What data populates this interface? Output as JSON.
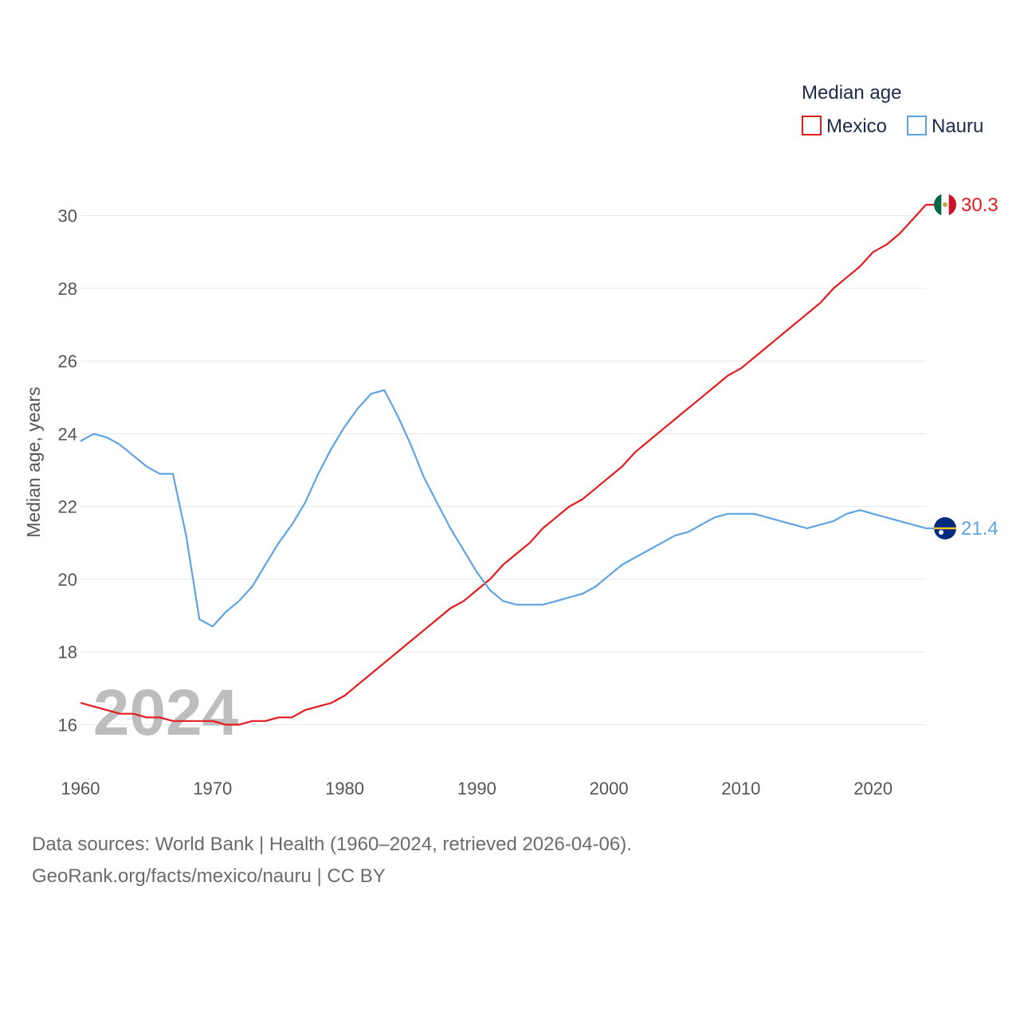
{
  "chart_data": {
    "type": "line",
    "legend_title": "Median age",
    "ylabel": "Median age, years",
    "xlabel": "",
    "ylim": [
      15,
      31
    ],
    "xlim": [
      1960,
      2024
    ],
    "y_ticks": [
      16,
      18,
      20,
      22,
      24,
      26,
      28,
      30
    ],
    "x_ticks": [
      1960,
      1970,
      1980,
      1990,
      2000,
      2010,
      2020
    ],
    "year_label": "2024",
    "grid": true,
    "legend_position": "top-right",
    "x": [
      1960,
      1961,
      1962,
      1963,
      1964,
      1965,
      1966,
      1967,
      1968,
      1969,
      1970,
      1971,
      1972,
      1973,
      1974,
      1975,
      1976,
      1977,
      1978,
      1979,
      1980,
      1981,
      1982,
      1983,
      1984,
      1985,
      1986,
      1987,
      1988,
      1989,
      1990,
      1991,
      1992,
      1993,
      1994,
      1995,
      1996,
      1997,
      1998,
      1999,
      2000,
      2001,
      2002,
      2003,
      2004,
      2005,
      2006,
      2007,
      2008,
      2009,
      2010,
      2011,
      2012,
      2013,
      2014,
      2015,
      2016,
      2017,
      2018,
      2019,
      2020,
      2021,
      2022,
      2023,
      2024
    ],
    "series": [
      {
        "name": "Mexico",
        "color": "#e41a1c",
        "end_label": "30.3",
        "flag": "mexico-flag-icon",
        "values": [
          16.6,
          16.5,
          16.4,
          16.3,
          16.3,
          16.2,
          16.2,
          16.1,
          16.1,
          16.1,
          16.1,
          16.0,
          16.0,
          16.1,
          16.1,
          16.2,
          16.2,
          16.4,
          16.5,
          16.6,
          16.8,
          17.1,
          17.4,
          17.7,
          18.0,
          18.3,
          18.6,
          18.9,
          19.2,
          19.4,
          19.7,
          20.0,
          20.4,
          20.7,
          21.0,
          21.4,
          21.7,
          22.0,
          22.2,
          22.5,
          22.8,
          23.1,
          23.5,
          23.8,
          24.1,
          24.4,
          24.7,
          25.0,
          25.3,
          25.6,
          25.8,
          26.1,
          26.4,
          26.7,
          27.0,
          27.3,
          27.6,
          28.0,
          28.3,
          28.6,
          29.0,
          29.2,
          29.5,
          29.9,
          30.3
        ]
      },
      {
        "name": "Nauru",
        "color": "#5ea4e5",
        "end_label": "21.4",
        "flag": "nauru-flag-icon",
        "values": [
          23.8,
          24.0,
          23.9,
          23.7,
          23.4,
          23.1,
          22.9,
          22.9,
          21.2,
          18.9,
          18.7,
          19.1,
          19.4,
          19.8,
          20.4,
          21.0,
          21.5,
          22.1,
          22.9,
          23.6,
          24.2,
          24.7,
          25.1,
          25.2,
          24.5,
          23.7,
          22.8,
          22.1,
          21.4,
          20.8,
          20.2,
          19.7,
          19.4,
          19.3,
          19.3,
          19.3,
          19.4,
          19.5,
          19.6,
          19.8,
          20.1,
          20.4,
          20.6,
          20.8,
          21.0,
          21.2,
          21.3,
          21.5,
          21.7,
          21.8,
          21.8,
          21.8,
          21.7,
          21.6,
          21.5,
          21.4,
          21.5,
          21.6,
          21.8,
          21.9,
          21.8,
          21.7,
          21.6,
          21.5,
          21.4
        ]
      }
    ]
  },
  "footer": {
    "sources": "Data sources: World Bank | Health (1960–2024, retrieved 2026-04-06).",
    "link": "GeoRank.org/facts/mexico/nauru | CC BY"
  }
}
